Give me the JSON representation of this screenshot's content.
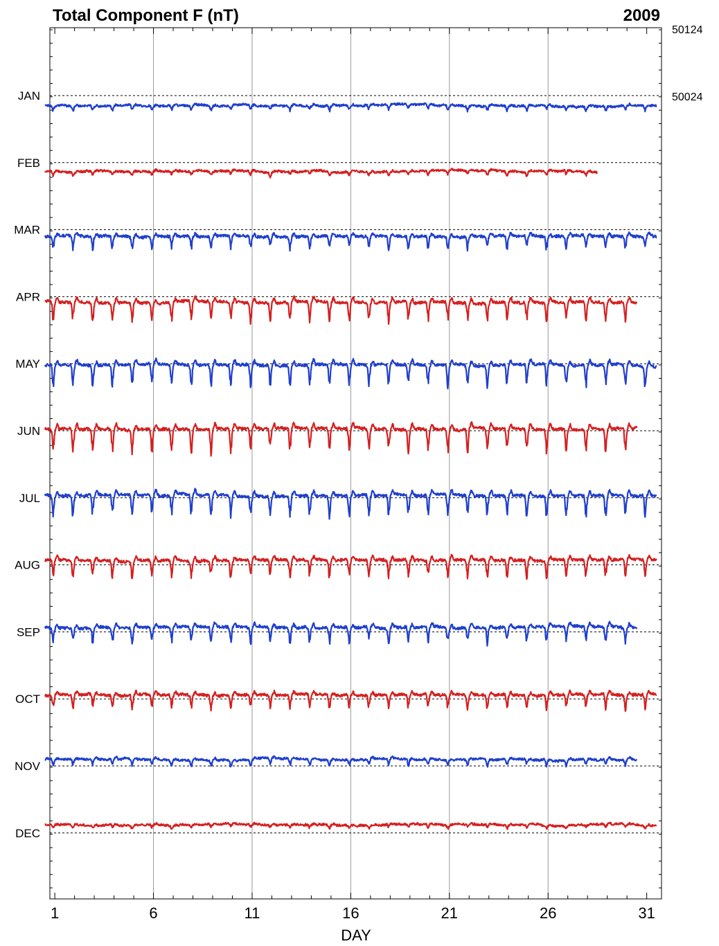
{
  "header": {
    "title": "Total Component F (nT)",
    "year": "2009"
  },
  "chart_data": {
    "type": "line",
    "title": "Total Component F (nT)",
    "year": "2009",
    "xlabel": "DAY",
    "xlim": [
      0.75,
      31.75
    ],
    "x_ticks": [
      "1",
      "6",
      "11",
      "16",
      "21",
      "26",
      "31"
    ],
    "y_scale_labels": [
      "50124",
      "50024"
    ],
    "baseline_nT": 50024,
    "nT_per_row": 100,
    "grid": true,
    "colors": {
      "odd_month": "#1f3fcc",
      "even_month": "#d42020"
    },
    "series": [
      {
        "name": "JAN",
        "color": "#1f3fcc",
        "days": 31,
        "offset_nT": -15,
        "dip": 6,
        "noise": 3
      },
      {
        "name": "FEB",
        "color": "#d42020",
        "days": 28,
        "offset_nT": -13,
        "dip": 5,
        "noise": 3
      },
      {
        "name": "MAR",
        "color": "#1f3fcc",
        "days": 31,
        "offset_nT": -10,
        "dip": 16,
        "noise": 4
      },
      {
        "name": "APR",
        "color": "#d42020",
        "days": 30,
        "offset_nT": -8,
        "dip": 24,
        "noise": 4
      },
      {
        "name": "MAY",
        "color": "#1f3fcc",
        "days": 31,
        "offset_nT": -2,
        "dip": 27,
        "noise": 4
      },
      {
        "name": "JUN",
        "color": "#d42020",
        "days": 30,
        "offset_nT": 3,
        "dip": 30,
        "noise": 4
      },
      {
        "name": "JUL",
        "color": "#1f3fcc",
        "days": 31,
        "offset_nT": 4,
        "dip": 27,
        "noise": 4
      },
      {
        "name": "AUG",
        "color": "#d42020",
        "days": 31,
        "offset_nT": 7,
        "dip": 22,
        "noise": 4
      },
      {
        "name": "SEP",
        "color": "#1f3fcc",
        "days": 30,
        "offset_nT": 7,
        "dip": 20,
        "noise": 4
      },
      {
        "name": "OCT",
        "color": "#d42020",
        "days": 31,
        "offset_nT": 6,
        "dip": 18,
        "noise": 4
      },
      {
        "name": "NOV",
        "color": "#1f3fcc",
        "days": 30,
        "offset_nT": 10,
        "dip": 8,
        "noise": 3
      },
      {
        "name": "DEC",
        "color": "#d42020",
        "days": 31,
        "offset_nT": 12,
        "dip": 4,
        "noise": 3
      }
    ]
  }
}
